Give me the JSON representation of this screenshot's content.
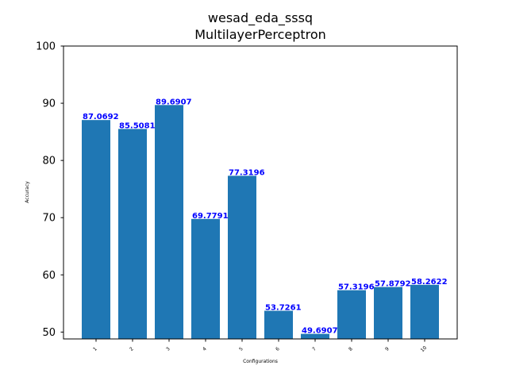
{
  "chart_data": {
    "type": "bar",
    "title": "wesad_eda_sssq",
    "subtitle": "MultilayerPerceptron",
    "xlabel": "Configurations",
    "ylabel": "Accuracy",
    "categories": [
      "1",
      "2",
      "3",
      "4",
      "5",
      "6",
      "7",
      "8",
      "9",
      "10"
    ],
    "values": [
      87.0692,
      85.5081,
      89.6907,
      69.7791,
      77.3196,
      53.7261,
      49.6907,
      57.3196,
      57.8792,
      58.2622
    ],
    "data_labels": [
      "87.0692",
      "85.5081",
      "89.6907",
      "69.7791",
      "77.3196",
      "53.7261",
      "49.6907",
      "57.3196",
      "57.8792",
      "58.2622"
    ],
    "yticks": [
      "50",
      "60",
      "70",
      "80",
      "90",
      "100"
    ],
    "ylim": [
      48.8,
      100
    ],
    "bar_color": "#1f77b4",
    "label_color": "#0000ff",
    "grid": false,
    "legend": "none"
  }
}
